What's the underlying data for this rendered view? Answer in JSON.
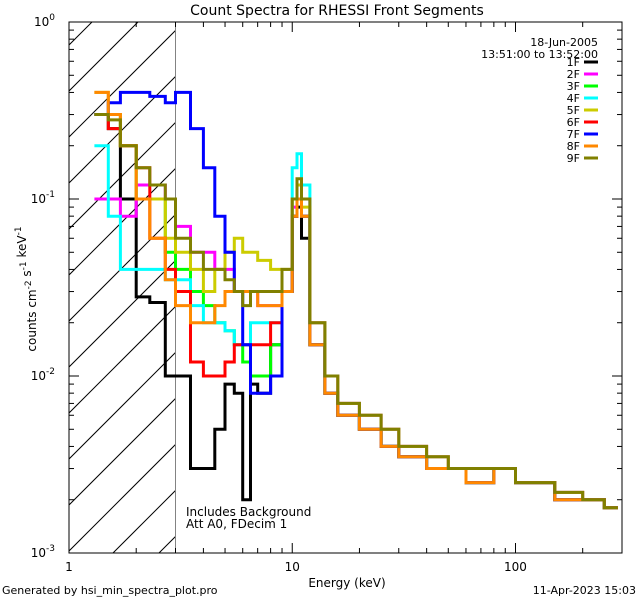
{
  "footer": {
    "left": "Generated by hsi_min_spectra_plot.pro",
    "right": "11-Apr-2023 15:03"
  },
  "chart_data": {
    "type": "line",
    "title": "Count Spectra for RHESSI Front Segments",
    "xlabel": "Energy (keV)",
    "ylabel": "counts cm^-2 s^-1 keV^-1",
    "x_scale": "log",
    "y_scale": "log",
    "xlim": [
      1,
      300
    ],
    "ylim": [
      0.001,
      1
    ],
    "x_ticks": [
      "1",
      "10",
      "100"
    ],
    "y_ticks": [
      "10^-3",
      "10^-2",
      "10^-1",
      "10^0"
    ],
    "date": "18-Jun-2005",
    "time_range": "13:51:00 to 13:52:00",
    "hatched_below_keV": 3,
    "notes": [
      "Includes Background",
      "Att A0, FDecim 1"
    ],
    "legend_position": "top-right",
    "series": [
      {
        "name": "1F",
        "color": "#000000",
        "x": [
          1.3,
          1.5,
          1.7,
          2.0,
          2.3,
          2.7,
          3.0,
          3.5,
          4.0,
          4.5,
          5.0,
          5.5,
          6.0,
          6.5,
          7.0,
          8.0,
          9.0,
          10.0,
          10.5,
          11.0,
          12,
          14,
          16,
          20,
          25,
          30,
          40,
          50,
          60,
          80,
          100,
          150,
          200,
          250
        ],
        "y": [
          0.3,
          0.25,
          0.1,
          0.028,
          0.026,
          0.01,
          0.01,
          0.003,
          0.003,
          0.005,
          0.009,
          0.008,
          0.002,
          0.009,
          0.008,
          0.015,
          0.03,
          0.08,
          0.09,
          0.06,
          0.015,
          0.008,
          0.006,
          0.005,
          0.004,
          0.0035,
          0.003,
          0.003,
          0.0025,
          0.003,
          0.0025,
          0.002,
          0.002,
          0.0018
        ]
      },
      {
        "name": "2F",
        "color": "#ff00ff",
        "x": [
          1.3,
          1.5,
          1.7,
          2.0,
          2.3,
          2.7,
          3.0,
          3.5,
          4.0,
          4.5,
          5.0,
          5.5,
          6.0,
          6.5,
          7.0,
          8.0,
          9.0,
          10.0,
          10.5,
          11.0,
          12,
          14,
          16,
          20,
          25,
          30,
          40,
          50,
          60,
          80,
          100,
          150,
          200,
          250
        ],
        "y": [
          0.1,
          0.1,
          0.08,
          0.12,
          0.12,
          0.1,
          0.07,
          0.05,
          0.05,
          0.04,
          0.04,
          0.03,
          0.03,
          0.03,
          0.025,
          0.025,
          0.03,
          0.09,
          0.12,
          0.1,
          0.02,
          0.01,
          0.007,
          0.006,
          0.005,
          0.004,
          0.0035,
          0.003,
          0.003,
          0.003,
          0.0025,
          0.0022,
          0.002,
          0.0018
        ]
      },
      {
        "name": "3F",
        "color": "#00ff00",
        "x": [
          1.3,
          1.5,
          1.7,
          2.0,
          2.3,
          2.7,
          3.0,
          3.5,
          4.0,
          4.5,
          5.0,
          5.5,
          6.0,
          6.5,
          7.0,
          8.0,
          9.0,
          10.0,
          10.5,
          11.0,
          12,
          14,
          16,
          20,
          25,
          30,
          40,
          50,
          60,
          80,
          100,
          150,
          200,
          250
        ],
        "y": [
          0.3,
          0.3,
          0.2,
          0.1,
          0.1,
          0.05,
          0.04,
          0.03,
          0.025,
          0.02,
          0.018,
          0.015,
          0.012,
          0.01,
          0.01,
          0.015,
          0.03,
          0.08,
          0.1,
          0.08,
          0.015,
          0.008,
          0.006,
          0.005,
          0.004,
          0.0035,
          0.003,
          0.003,
          0.0025,
          0.003,
          0.0025,
          0.002,
          0.002,
          0.0018
        ]
      },
      {
        "name": "4F",
        "color": "#00ffff",
        "x": [
          1.3,
          1.5,
          1.7,
          2.0,
          2.3,
          2.7,
          3.0,
          3.5,
          4.0,
          4.5,
          5.0,
          5.5,
          6.0,
          6.5,
          7.0,
          8.0,
          9.0,
          10.0,
          10.5,
          11.0,
          12,
          14,
          16,
          20,
          25,
          30,
          40,
          50,
          60,
          80,
          100,
          150,
          200,
          250
        ],
        "y": [
          0.2,
          0.08,
          0.04,
          0.04,
          0.04,
          0.035,
          0.035,
          0.025,
          0.02,
          0.02,
          0.018,
          0.015,
          0.015,
          0.02,
          0.02,
          0.02,
          0.03,
          0.15,
          0.18,
          0.12,
          0.015,
          0.008,
          0.006,
          0.005,
          0.004,
          0.0035,
          0.003,
          0.003,
          0.0025,
          0.003,
          0.0025,
          0.002,
          0.002,
          0.0018
        ]
      },
      {
        "name": "5F",
        "color": "#cccc00",
        "x": [
          1.3,
          1.5,
          1.7,
          2.0,
          2.3,
          2.7,
          3.0,
          3.5,
          4.0,
          4.5,
          5.0,
          5.5,
          6.0,
          6.5,
          7.0,
          8.0,
          9.0,
          10.0,
          10.5,
          11.0,
          12,
          14,
          16,
          20,
          25,
          30,
          40,
          50,
          60,
          80,
          100,
          150,
          200,
          250
        ],
        "y": [
          0.4,
          0.3,
          0.2,
          0.1,
          0.1,
          0.06,
          0.05,
          0.04,
          0.03,
          0.04,
          0.05,
          0.06,
          0.05,
          0.05,
          0.045,
          0.04,
          0.04,
          0.1,
          0.12,
          0.09,
          0.02,
          0.01,
          0.007,
          0.006,
          0.005,
          0.004,
          0.0035,
          0.003,
          0.003,
          0.003,
          0.0025,
          0.0022,
          0.002,
          0.0018
        ]
      },
      {
        "name": "6F",
        "color": "#ff0000",
        "x": [
          1.3,
          1.5,
          1.7,
          2.0,
          2.3,
          2.7,
          3.0,
          3.5,
          4.0,
          4.5,
          5.0,
          5.5,
          6.0,
          6.5,
          7.0,
          8.0,
          9.0,
          10.0,
          10.5,
          11.0,
          12,
          14,
          16,
          20,
          25,
          30,
          40,
          50,
          60,
          80,
          100,
          150,
          200,
          250
        ],
        "y": [
          0.3,
          0.25,
          0.2,
          0.15,
          0.06,
          0.04,
          0.03,
          0.012,
          0.01,
          0.01,
          0.012,
          0.015,
          0.015,
          0.015,
          0.015,
          0.02,
          0.03,
          0.08,
          0.1,
          0.08,
          0.015,
          0.008,
          0.006,
          0.005,
          0.004,
          0.0035,
          0.003,
          0.003,
          0.0025,
          0.003,
          0.0025,
          0.002,
          0.002,
          0.0018
        ]
      },
      {
        "name": "7F",
        "color": "#0000ff",
        "x": [
          1.3,
          1.5,
          1.7,
          2.0,
          2.3,
          2.7,
          3.0,
          3.5,
          4.0,
          4.5,
          5.0,
          5.5,
          6.0,
          6.5,
          7.0,
          8.0,
          9.0,
          10.0,
          10.5,
          11.0,
          12,
          14,
          16,
          20,
          25,
          30,
          40,
          50,
          60,
          80,
          100,
          150,
          200,
          250
        ],
        "y": [
          0.3,
          0.35,
          0.4,
          0.4,
          0.38,
          0.35,
          0.4,
          0.25,
          0.15,
          0.08,
          0.05,
          0.03,
          0.015,
          0.008,
          0.008,
          0.01,
          0.03,
          0.08,
          0.1,
          0.08,
          0.015,
          0.008,
          0.006,
          0.005,
          0.004,
          0.0035,
          0.003,
          0.003,
          0.0025,
          0.003,
          0.0025,
          0.002,
          0.002,
          0.0018
        ]
      },
      {
        "name": "8F",
        "color": "#ff8800",
        "x": [
          1.3,
          1.5,
          1.7,
          2.0,
          2.3,
          2.7,
          3.0,
          3.5,
          4.0,
          4.5,
          5.0,
          5.5,
          6.0,
          6.5,
          7.0,
          8.0,
          9.0,
          10.0,
          10.5,
          11.0,
          12,
          14,
          16,
          20,
          25,
          30,
          40,
          50,
          60,
          80,
          100,
          150,
          200,
          250
        ],
        "y": [
          0.4,
          0.3,
          0.2,
          0.1,
          0.06,
          0.035,
          0.025,
          0.02,
          0.02,
          0.025,
          0.03,
          0.03,
          0.03,
          0.03,
          0.025,
          0.025,
          0.03,
          0.08,
          0.1,
          0.08,
          0.015,
          0.008,
          0.006,
          0.005,
          0.004,
          0.0035,
          0.003,
          0.003,
          0.0025,
          0.003,
          0.0025,
          0.002,
          0.002,
          0.0018
        ]
      },
      {
        "name": "9F",
        "color": "#808000",
        "x": [
          1.3,
          1.5,
          1.7,
          2.0,
          2.3,
          2.7,
          3.0,
          3.5,
          4.0,
          4.5,
          5.0,
          5.5,
          6.0,
          6.5,
          7.0,
          8.0,
          9.0,
          10.0,
          10.5,
          11.0,
          12,
          14,
          16,
          20,
          25,
          30,
          40,
          50,
          60,
          80,
          100,
          150,
          200,
          250
        ],
        "y": [
          0.3,
          0.28,
          0.2,
          0.15,
          0.12,
          0.1,
          0.06,
          0.05,
          0.04,
          0.04,
          0.035,
          0.03,
          0.025,
          0.03,
          0.03,
          0.03,
          0.04,
          0.1,
          0.13,
          0.1,
          0.02,
          0.01,
          0.007,
          0.006,
          0.005,
          0.004,
          0.0035,
          0.003,
          0.003,
          0.003,
          0.0025,
          0.0022,
          0.002,
          0.0018
        ]
      }
    ]
  }
}
